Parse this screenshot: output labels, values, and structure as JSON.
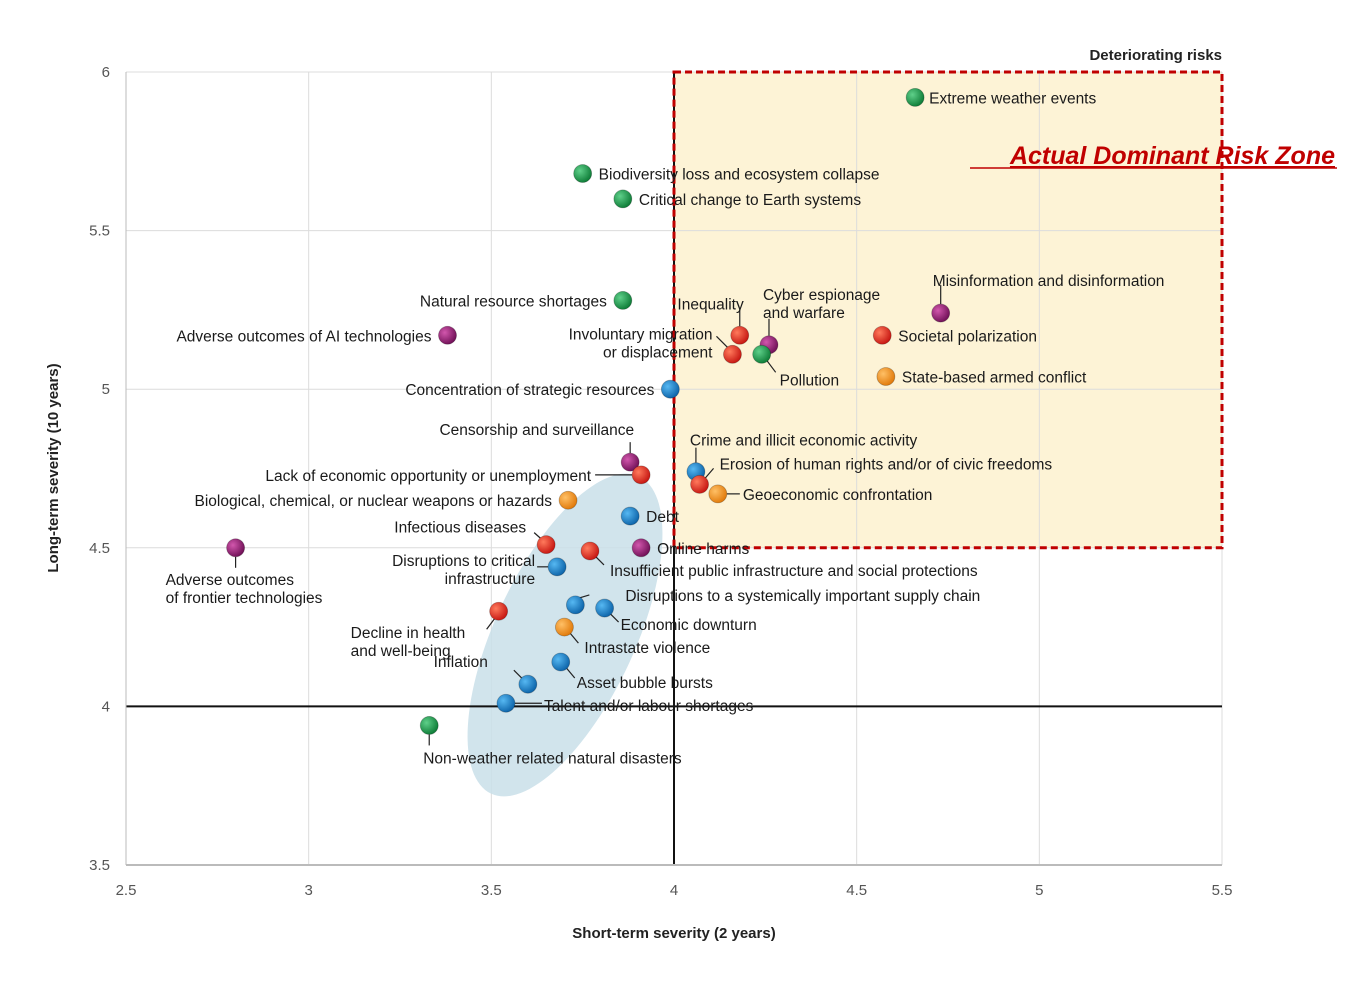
{
  "chart_data": {
    "type": "scatter",
    "title": "",
    "xlabel": "Short-term severity (2 years)",
    "ylabel": "Long-term severity (10 years)",
    "xlim": [
      2.5,
      5.5
    ],
    "ylim": [
      3.5,
      6
    ],
    "xticks": [
      "2.5",
      "3",
      "3.5",
      "4",
      "4.5",
      "5",
      "5.5"
    ],
    "yticks": [
      "3.5",
      "4",
      "4.5",
      "5",
      "5.5",
      "6"
    ],
    "grid": true,
    "reference_lines": {
      "x": 4,
      "y": 4
    },
    "corner_label": "Deteriorating risks",
    "highlight_zone": {
      "label": "Actual Dominant Risk Zone",
      "x_range": [
        4,
        5.5
      ],
      "y_range": [
        4.5,
        6
      ],
      "fill": "#fdf3d6",
      "border": "#c00000"
    },
    "cluster_ellipse": {
      "fill": "#c9dfe9",
      "note": "shaded cluster of lower-left risks"
    },
    "colors": {
      "environmental": "#1a9a4a",
      "societal": "#e8291d",
      "technological": "#9b1f7a",
      "economic": "#1485d4",
      "geopolitical": "#f5961e"
    },
    "points": [
      {
        "label": "Extreme weather events",
        "x": 4.66,
        "y": 5.92,
        "category": "environmental"
      },
      {
        "label": "Biodiversity loss and ecosystem collapse",
        "x": 3.75,
        "y": 5.68,
        "category": "environmental"
      },
      {
        "label": "Critical change to Earth systems",
        "x": 3.86,
        "y": 5.6,
        "category": "environmental"
      },
      {
        "label": "Natural resource shortages",
        "x": 3.86,
        "y": 5.28,
        "category": "environmental"
      },
      {
        "label": "Adverse outcomes of AI technologies",
        "x": 3.38,
        "y": 5.17,
        "category": "technological"
      },
      {
        "label": "Misinformation and disinformation",
        "x": 4.73,
        "y": 5.24,
        "category": "technological"
      },
      {
        "label": "Inequality",
        "x": 4.18,
        "y": 5.17,
        "category": "societal"
      },
      {
        "label": "Involuntary migration or displacement",
        "x": 4.16,
        "y": 5.11,
        "category": "societal"
      },
      {
        "label": "Cyber espionage and warfare",
        "x": 4.26,
        "y": 5.14,
        "category": "technological"
      },
      {
        "label": "Pollution",
        "x": 4.24,
        "y": 5.11,
        "category": "environmental"
      },
      {
        "label": "Societal polarization",
        "x": 4.57,
        "y": 5.17,
        "category": "societal"
      },
      {
        "label": "State-based armed conflict",
        "x": 4.58,
        "y": 5.04,
        "category": "geopolitical"
      },
      {
        "label": "Concentration of strategic resources",
        "x": 3.99,
        "y": 5.0,
        "category": "economic"
      },
      {
        "label": "Crime and illicit economic activity",
        "x": 4.06,
        "y": 4.74,
        "category": "economic"
      },
      {
        "label": "Erosion of human rights and/or of civic freedoms",
        "x": 4.07,
        "y": 4.7,
        "category": "societal"
      },
      {
        "label": "Geoeconomic confrontation",
        "x": 4.12,
        "y": 4.67,
        "category": "geopolitical"
      },
      {
        "label": "Censorship and surveillance",
        "x": 3.88,
        "y": 4.77,
        "category": "technological"
      },
      {
        "label": "Lack of economic opportunity or unemployment",
        "x": 3.91,
        "y": 4.73,
        "category": "societal"
      },
      {
        "label": "Biological, chemical, or nuclear weapons or hazards",
        "x": 3.71,
        "y": 4.65,
        "category": "geopolitical"
      },
      {
        "label": "Debt",
        "x": 3.88,
        "y": 4.6,
        "category": "economic"
      },
      {
        "label": "Infectious diseases",
        "x": 3.65,
        "y": 4.51,
        "category": "societal"
      },
      {
        "label": "Online harms",
        "x": 3.91,
        "y": 4.5,
        "category": "technological"
      },
      {
        "label": "Adverse outcomes of frontier technologies",
        "x": 2.8,
        "y": 4.5,
        "category": "technological"
      },
      {
        "label": "Insufficient public infrastructure and social protections",
        "x": 3.77,
        "y": 4.49,
        "category": "societal"
      },
      {
        "label": "Disruptions to critical infrastructure",
        "x": 3.68,
        "y": 4.44,
        "category": "economic"
      },
      {
        "label": "Disruptions to a systemically important supply chain",
        "x": 3.73,
        "y": 4.32,
        "category": "economic"
      },
      {
        "label": "Economic downturn",
        "x": 3.81,
        "y": 4.31,
        "category": "economic"
      },
      {
        "label": "Decline in health and well-being",
        "x": 3.52,
        "y": 4.3,
        "category": "societal"
      },
      {
        "label": "Intrastate violence",
        "x": 3.7,
        "y": 4.25,
        "category": "geopolitical"
      },
      {
        "label": "Asset bubble bursts",
        "x": 3.69,
        "y": 4.14,
        "category": "economic"
      },
      {
        "label": "Inflation",
        "x": 3.6,
        "y": 4.07,
        "category": "economic"
      },
      {
        "label": "Talent and/or labour shortages",
        "x": 3.54,
        "y": 4.01,
        "category": "economic"
      },
      {
        "label": "Non-weather related natural disasters",
        "x": 3.33,
        "y": 3.94,
        "category": "environmental"
      }
    ]
  }
}
